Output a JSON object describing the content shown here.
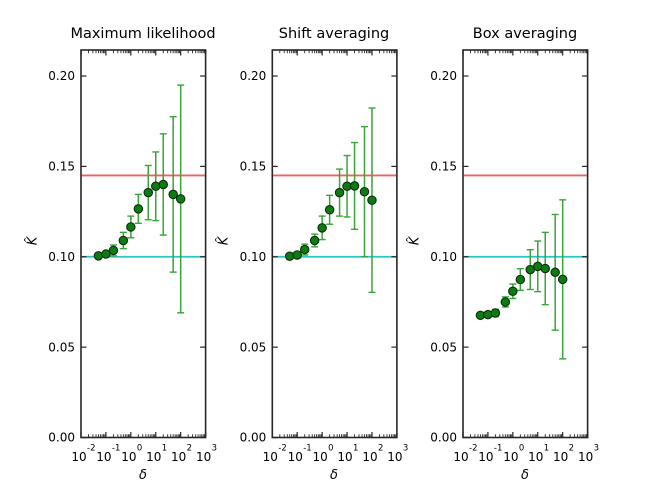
{
  "figure": {
    "background": "#ffffff"
  },
  "style": {
    "axis_color": "#262626",
    "text_color": "#000000",
    "marker_color": "#0c7c12",
    "marker_edge_color": "#0a2e0a",
    "errorbar_color": "#3aa33a",
    "red_line_color": "#f0605c",
    "cyan_line_color": "#25c6c6"
  },
  "axes": {
    "xscale": "log",
    "xlim": [
      0.01,
      1000
    ],
    "ylim": [
      0,
      0.2144
    ],
    "xtick_base": "10",
    "xtick_exponents": [
      "-2",
      "-1",
      "0",
      "1",
      "2",
      "3"
    ],
    "ytick_values": [
      0,
      0.05,
      0.1,
      0.15,
      0.2
    ],
    "ytick_labels": [
      "0.00",
      "0.05",
      "0.10",
      "0.15",
      "0.20"
    ],
    "grid": false
  },
  "chart_data": [
    {
      "type": "scatter",
      "title": "Maximum likelihood",
      "xlabel": "δ",
      "ylabel": "K̂",
      "x": [
        0.05,
        0.1,
        0.2,
        0.5,
        1,
        2,
        5,
        10,
        20,
        50,
        100
      ],
      "y": [
        0.1005,
        0.1015,
        0.1035,
        0.109,
        0.1165,
        0.1265,
        0.1355,
        0.139,
        0.14,
        0.1345,
        0.132
      ],
      "yerr": [
        0.001,
        0.0015,
        0.003,
        0.0045,
        0.006,
        0.008,
        0.015,
        0.019,
        0.028,
        0.043,
        0.063
      ],
      "hlines": [
        {
          "y": 0.145,
          "color": "#f0605c"
        },
        {
          "y": 0.1,
          "color": "#25c6c6"
        }
      ]
    },
    {
      "type": "scatter",
      "title": "Shift averaging",
      "xlabel": "δ",
      "ylabel": "K̂",
      "x": [
        0.05,
        0.1,
        0.2,
        0.5,
        1,
        2,
        5,
        10,
        20,
        50,
        100
      ],
      "y": [
        0.1003,
        0.101,
        0.104,
        0.109,
        0.116,
        0.126,
        0.1355,
        0.139,
        0.1392,
        0.136,
        0.1313
      ],
      "yerr": [
        0.001,
        0.0015,
        0.003,
        0.0035,
        0.0065,
        0.008,
        0.013,
        0.017,
        0.024,
        0.036,
        0.051
      ],
      "hlines": [
        {
          "y": 0.145,
          "color": "#f0605c"
        },
        {
          "y": 0.1,
          "color": "#25c6c6"
        }
      ]
    },
    {
      "type": "scatter",
      "title": "Box averaging",
      "xlabel": "δ",
      "ylabel": "K̂",
      "x": [
        0.05,
        0.1,
        0.2,
        0.5,
        1,
        2,
        5,
        10,
        20,
        50,
        100
      ],
      "y": [
        0.0676,
        0.068,
        0.0689,
        0.075,
        0.0809,
        0.0874,
        0.0929,
        0.0947,
        0.0935,
        0.0914,
        0.0875
      ],
      "yerr": [
        0.001,
        0.0012,
        0.002,
        0.0028,
        0.004,
        0.006,
        0.011,
        0.014,
        0.02,
        0.032,
        0.044
      ],
      "hlines": [
        {
          "y": 0.145,
          "color": "#f0605c"
        },
        {
          "y": 0.1,
          "color": "#25c6c6"
        }
      ]
    }
  ]
}
